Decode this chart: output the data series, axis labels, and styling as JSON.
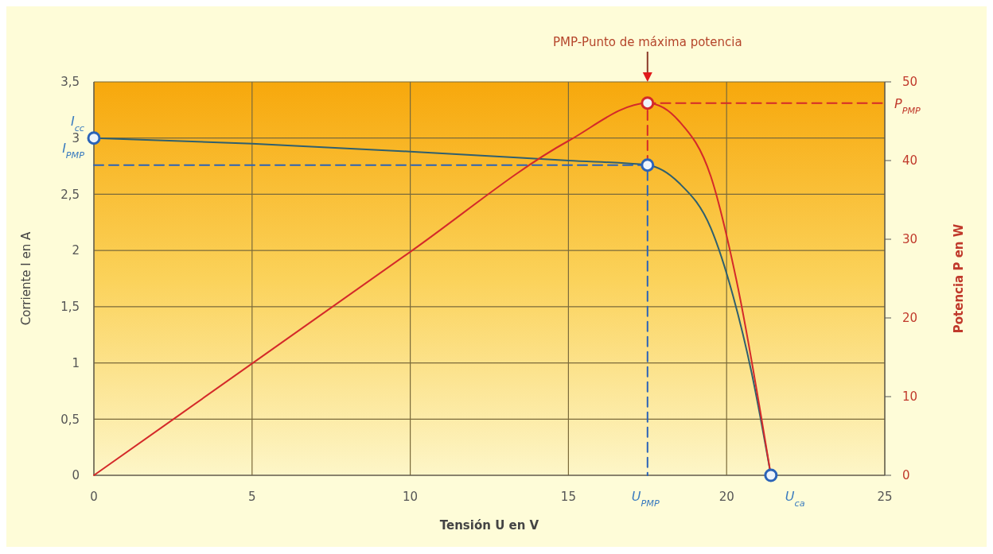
{
  "chart_data": {
    "type": "line",
    "xlabel": "Tensión U en V",
    "ylabel": "Corriente I en A",
    "y2label": "Potencia P en W",
    "xlim": [
      0,
      25
    ],
    "xticks": [
      0,
      5,
      10,
      15,
      20,
      25
    ],
    "ylim": [
      0,
      3.5
    ],
    "yticks": [
      0,
      {
        "value": 0.5,
        "label": "0,5"
      },
      1,
      {
        "value": 1.5,
        "label": "1,5"
      },
      2,
      {
        "value": 2.5,
        "label": "2,5"
      },
      3,
      {
        "value": 3.5,
        "label": "3,5"
      }
    ],
    "y2lim": [
      0,
      50
    ],
    "y2ticks": [
      0,
      10,
      20,
      30,
      40,
      50
    ],
    "grid": true,
    "series": [
      {
        "color": "#2f5f6e",
        "x": [
          0,
          5,
          10,
          15,
          17.5,
          18.5,
          19.5,
          20.2,
          20.8,
          21.4
        ],
        "values": [
          3,
          2.95,
          2.88,
          2.8,
          2.76,
          2.6,
          2.2,
          1.6,
          0.9,
          0
        ]
      },
      {
        "axis": "y2",
        "color": "#d42a2a",
        "x": [
          0,
          5,
          10,
          15,
          17.5,
          18.5,
          19.5,
          20.3,
          21.4
        ],
        "values": [
          0,
          14.2,
          28.4,
          42.5,
          47.3,
          45,
          38,
          25,
          0
        ]
      },
      {
        "type": "line",
        "line_style": "dashed",
        "color": "#2b63b8",
        "x": [
          0,
          17.5,
          17.5
        ],
        "values": [
          2.76,
          2.76,
          0
        ]
      },
      {
        "type": "line",
        "line_style": "dashed",
        "axis": "y2",
        "color": "#d42a2a",
        "x": [
          17.5,
          17.5,
          25
        ],
        "values": [
          39.4,
          47.3,
          47.3
        ]
      },
      {
        "type": "scatter",
        "marker": "circle",
        "color": "#2b63b8",
        "x": [
          0,
          17.5,
          21.4
        ],
        "values": [
          3,
          2.76,
          0
        ]
      },
      {
        "type": "scatter",
        "marker": "circle",
        "axis": "y2",
        "color": "#d42a2a",
        "x": [
          17.5
        ],
        "values": [
          47.3
        ]
      }
    ],
    "annotations": [
      "PMP-Punto de máxima potencia",
      {
        "text": "I$_{cc}$",
        "x": 0,
        "y": 3
      },
      {
        "text": "I$_{PMP}$",
        "x": 0,
        "y": 2.76
      },
      {
        "text": "U$_{PMP}$",
        "x": 17.5,
        "y": 0
      },
      {
        "text": "U$_{ca}$",
        "x": 21.4,
        "y": 0
      },
      {
        "text": "P$_{PMP}$",
        "x": 25,
        "y": 3.31
      }
    ]
  }
}
